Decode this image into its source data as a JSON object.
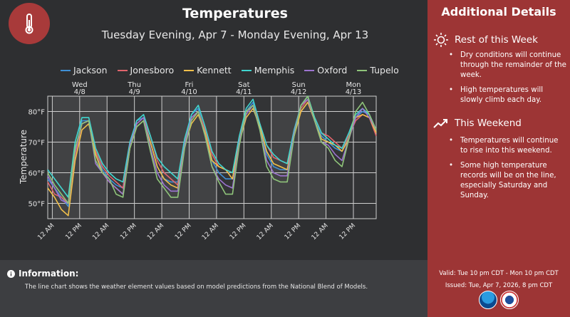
{
  "header": {
    "title": "Temperatures",
    "subtitle": "Tuesday Evening, Apr 7 - Monday Evening, Apr 13",
    "icon": "thermometer-icon"
  },
  "chart_data": {
    "type": "line",
    "ylabel": "Temperature",
    "ylim": [
      45,
      85
    ],
    "yticks": [
      {
        "v": 50,
        "label": "50°F"
      },
      {
        "v": 60,
        "label": "60°F"
      },
      {
        "v": 70,
        "label": "70°F"
      },
      {
        "v": 80,
        "label": "80°F"
      }
    ],
    "x_start": "Tue 10 PM",
    "x_end": "Mon 10 PM",
    "x_step_hours": 3,
    "xticks": [
      "12 AM",
      "12 PM",
      "12 AM",
      "12 PM",
      "12 AM",
      "12 PM",
      "12 AM",
      "12 PM",
      "12 AM",
      "12 PM",
      "12 AM",
      "12 PM"
    ],
    "days": [
      {
        "dow": "Wed",
        "date": "4/8"
      },
      {
        "dow": "Thu",
        "date": "4/9"
      },
      {
        "dow": "Fri",
        "date": "4/10"
      },
      {
        "dow": "Sat",
        "date": "4/11"
      },
      {
        "dow": "Sun",
        "date": "4/12"
      },
      {
        "dow": "Mon",
        "date": "4/13"
      }
    ],
    "grid": true,
    "legend": "top",
    "series": [
      {
        "name": "Jackson",
        "color": "#3f8fd6",
        "values": [
          58,
          55,
          52,
          49,
          67,
          77,
          77,
          66,
          61,
          58,
          56,
          55,
          69,
          77,
          78,
          70,
          62,
          58,
          57,
          57,
          70,
          79,
          81,
          73,
          64,
          60,
          58,
          58,
          71,
          80,
          83,
          75,
          66,
          62,
          61,
          61,
          73,
          82,
          85,
          77,
          72,
          70,
          68,
          67,
          72,
          78,
          80,
          79,
          74
        ]
      },
      {
        "name": "Jonesboro",
        "color": "#e0646c",
        "values": [
          57,
          53,
          52,
          50,
          66,
          76,
          77,
          67,
          62,
          59,
          57,
          55,
          69,
          76,
          78,
          72,
          64,
          60,
          58,
          56,
          70,
          78,
          80,
          74,
          66,
          62,
          61,
          60,
          71,
          80,
          82,
          76,
          69,
          65,
          64,
          63,
          73,
          81,
          84,
          78,
          73,
          72,
          70,
          68,
          72,
          77,
          79,
          78,
          72
        ]
      },
      {
        "name": "Kennett",
        "color": "#f2c04a",
        "values": [
          55,
          52,
          48,
          46,
          64,
          74,
          76,
          66,
          60,
          57,
          55,
          53,
          68,
          75,
          77,
          70,
          62,
          58,
          56,
          55,
          69,
          76,
          79,
          73,
          64,
          62,
          61,
          58,
          70,
          78,
          81,
          75,
          67,
          63,
          62,
          61,
          72,
          80,
          83,
          77,
          71,
          70,
          69,
          67,
          71,
          78,
          79,
          78,
          73
        ]
      },
      {
        "name": "Memphis",
        "color": "#40d6d0",
        "values": [
          61,
          58,
          55,
          52,
          70,
          78,
          78,
          68,
          63,
          60,
          58,
          57,
          70,
          77,
          79,
          72,
          65,
          62,
          60,
          58,
          71,
          79,
          82,
          75,
          67,
          63,
          61,
          60,
          72,
          81,
          84,
          76,
          69,
          66,
          64,
          63,
          74,
          82,
          85,
          78,
          73,
          71,
          69,
          68,
          73,
          79,
          81,
          79,
          74
        ]
      },
      {
        "name": "Oxford",
        "color": "#9c74d0",
        "values": [
          59,
          55,
          51,
          50,
          67,
          76,
          77,
          63,
          60,
          57,
          55,
          53,
          69,
          76,
          78,
          68,
          60,
          56,
          54,
          54,
          69,
          78,
          80,
          72,
          62,
          58,
          56,
          55,
          70,
          79,
          82,
          74,
          64,
          60,
          59,
          59,
          73,
          82,
          84,
          77,
          70,
          69,
          66,
          64,
          71,
          78,
          81,
          78,
          74
        ]
      },
      {
        "name": "Tupelo",
        "color": "#8fc47a",
        "values": [
          60,
          56,
          53,
          50,
          68,
          76,
          77,
          64,
          60,
          58,
          53,
          52,
          68,
          75,
          77,
          67,
          58,
          55,
          52,
          52,
          68,
          77,
          80,
          72,
          62,
          57,
          53,
          53,
          69,
          80,
          82,
          74,
          62,
          58,
          57,
          57,
          72,
          82,
          85,
          77,
          70,
          68,
          64,
          62,
          71,
          80,
          83,
          79,
          74
        ]
      }
    ]
  },
  "info": {
    "heading": "Information:",
    "text": "The line chart shows the weather element values based on model predictions from the National Blend of Models.",
    "icon": "info-icon"
  },
  "details": {
    "title": "Additional Details",
    "sections": [
      {
        "heading": "Rest of this Week",
        "icon": "sun-icon",
        "bullets": [
          "Dry conditions will continue through the remainder of the week.",
          "High temperatures will slowly climb each day."
        ]
      },
      {
        "heading": "This Weekend",
        "icon": "trending-up-icon",
        "bullets": [
          "Temperatures will continue to rise into this weekend.",
          "Some high temperature records will be on the line, especially Saturday and Sunday."
        ]
      }
    ],
    "valid": "Valid: Tue 10 pm CDT - Mon 10 pm CDT",
    "issued": "Issued: Tue, Apr 7, 2026, 8 pm CDT",
    "logos": [
      "NOAA",
      "NWS"
    ]
  },
  "colors": {
    "accent": "#9d3535",
    "background": "#2e2f31"
  }
}
